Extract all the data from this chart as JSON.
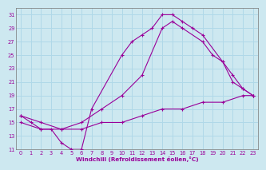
{
  "xlabel": "Windchill (Refroidissement éolien,°C)",
  "bg_color": "#cde8f0",
  "grid_color": "#b0d8e8",
  "line_color": "#990099",
  "xlim": [
    -0.5,
    23.5
  ],
  "ylim": [
    11,
    32
  ],
  "xticks": [
    0,
    1,
    2,
    3,
    4,
    5,
    6,
    7,
    8,
    9,
    10,
    11,
    12,
    13,
    14,
    15,
    16,
    17,
    18,
    19,
    20,
    21,
    22,
    23
  ],
  "yticks": [
    11,
    13,
    15,
    17,
    19,
    21,
    23,
    25,
    27,
    29,
    31
  ],
  "curve1_x": [
    0,
    1,
    2,
    3,
    4,
    5,
    6,
    7,
    10,
    11,
    12,
    13,
    14,
    15,
    16,
    17,
    18,
    20,
    21,
    22,
    23
  ],
  "curve1_y": [
    16,
    15,
    14,
    14,
    12,
    11,
    11,
    17,
    25,
    27,
    28,
    29,
    31,
    31,
    30,
    29,
    28,
    24,
    21,
    20,
    19
  ],
  "curve2_x": [
    0,
    2,
    4,
    6,
    8,
    10,
    12,
    14,
    15,
    16,
    18,
    19,
    20,
    21,
    22,
    23
  ],
  "curve2_y": [
    16,
    15,
    14,
    15,
    17,
    19,
    22,
    29,
    30,
    29,
    27,
    25,
    24,
    22,
    20,
    19
  ],
  "curve3_x": [
    0,
    2,
    4,
    6,
    8,
    10,
    12,
    14,
    16,
    18,
    20,
    22,
    23
  ],
  "curve3_y": [
    15,
    14,
    14,
    14,
    15,
    15,
    16,
    17,
    17,
    18,
    18,
    19,
    19
  ]
}
